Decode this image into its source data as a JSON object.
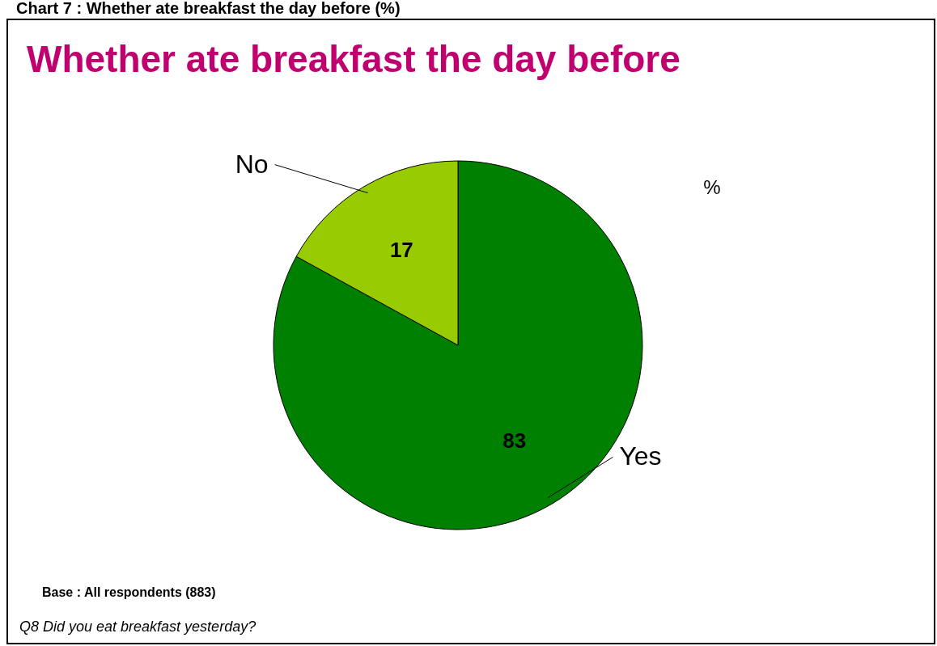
{
  "chart_data": {
    "type": "pie",
    "title": "Whether ate breakfast the day before",
    "subtitle": "%",
    "categories": [
      "Yes",
      "No"
    ],
    "values": [
      83,
      17
    ],
    "colors": [
      "#008000",
      "#99cc00"
    ],
    "data_labels": true,
    "annotations": [
      "Chart 7 : Whether ate breakfast the day before (%)",
      "Base : All respondents (883)",
      "Q8 Did you eat breakfast yesterday?"
    ]
  }
}
